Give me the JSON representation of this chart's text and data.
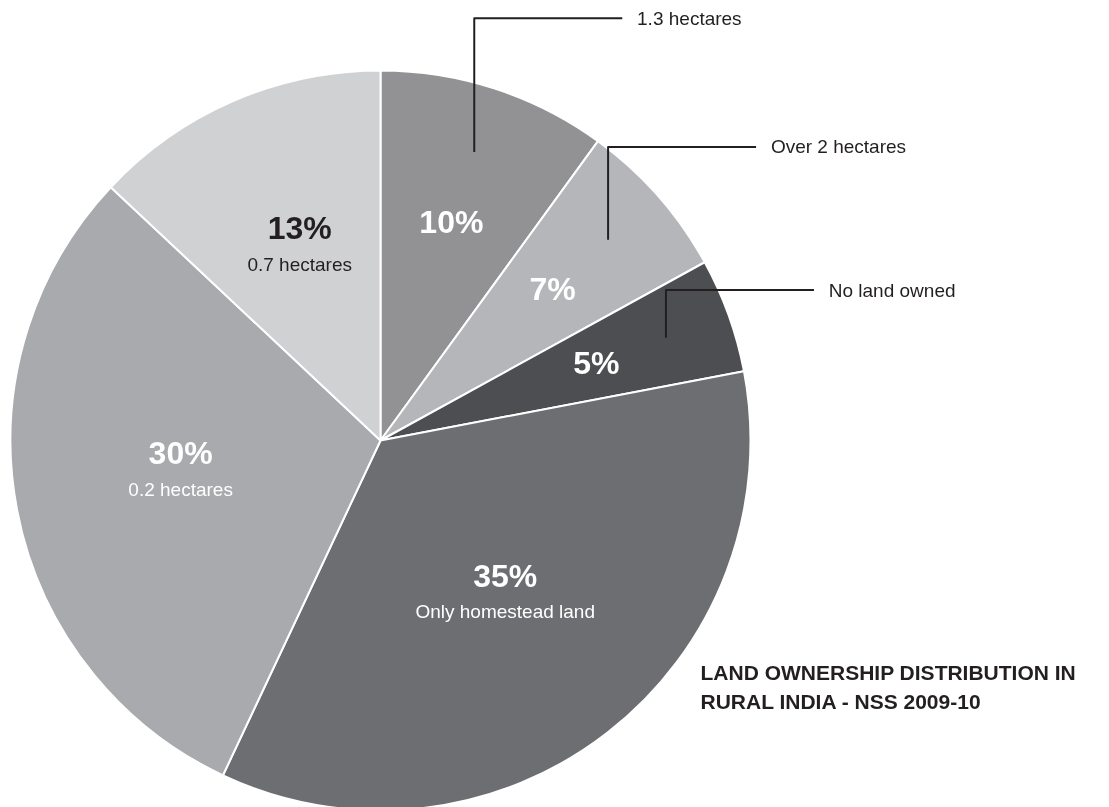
{
  "chart_data": {
    "type": "pie",
    "title": "LAND OWNERSHIP DISTRIBUTION IN RURAL INDIA - NSS 2009-10",
    "categories": [
      "1.3 hectares",
      "Over 2 hectares",
      "No land owned",
      "Only homestead land",
      "0.2 hectares",
      "0.7 hectares"
    ],
    "values": [
      10,
      7,
      5,
      35,
      30,
      13
    ],
    "colors": [
      "#929295",
      "#b5b6b9",
      "#4d4e51",
      "#6d6e72",
      "#a9aaad",
      "#d0d1d3"
    ],
    "value_labels": [
      "10%",
      "7%",
      "5%",
      "35%",
      "30%",
      "13%"
    ]
  }
}
